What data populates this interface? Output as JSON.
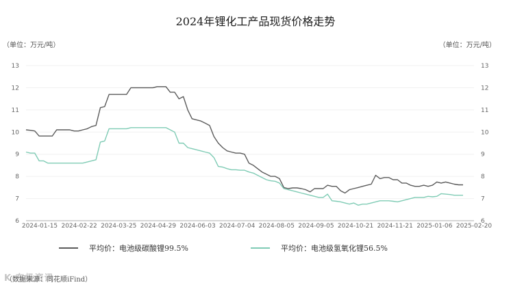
{
  "title": "2024年锂化工产品现货价格走势",
  "unit_left": "（单位：万元/吨）",
  "unit_right": "（单位：万元/吨）",
  "source": "（数据来源：同花顺iFind）",
  "watermark": "K 东极资讯",
  "legend": [
    {
      "label": "平均价：电池级碳酸锂99.5%",
      "color": "#5a5a5a"
    },
    {
      "label": "平均价：电池级氢氧化锂56.5%",
      "color": "#7ecbb4"
    }
  ],
  "chart_data": {
    "type": "line",
    "title": "2024年锂化工产品现货价格走势",
    "ylabel": "万元/吨",
    "ylim": [
      6,
      13
    ],
    "yticks": [
      6,
      7,
      8,
      9,
      10,
      11,
      12,
      13
    ],
    "grid": true,
    "legend_position": "bottom",
    "x_tick_labels": [
      "2024-01-15",
      "2024-02-22",
      "2024-03-25",
      "2024-04-29",
      "2024-06-03",
      "2024-07-04",
      "2024-08-05",
      "2024-09-05",
      "2024-10-21",
      "2024-11-21",
      "2025-01-06",
      "2025-02-20"
    ],
    "series": [
      {
        "name": "平均价：电池级碳酸锂99.5%",
        "color": "#5a5a5a",
        "values": [
          10.1,
          10.08,
          10.05,
          9.82,
          9.82,
          9.82,
          9.82,
          10.1,
          10.1,
          10.1,
          10.1,
          10.05,
          10.05,
          10.1,
          10.15,
          10.25,
          10.3,
          11.1,
          11.15,
          11.7,
          11.7,
          11.7,
          11.7,
          11.7,
          12.0,
          12.0,
          12.0,
          12.0,
          12.0,
          12.0,
          12.05,
          12.05,
          12.05,
          11.8,
          11.8,
          11.5,
          11.6,
          11.0,
          10.6,
          10.55,
          10.5,
          10.4,
          10.3,
          9.8,
          9.5,
          9.3,
          9.15,
          9.1,
          9.05,
          9.05,
          9.0,
          8.6,
          8.5,
          8.35,
          8.2,
          8.1,
          8.0,
          8.0,
          7.9,
          7.5,
          7.45,
          7.48,
          7.48,
          7.45,
          7.4,
          7.3,
          7.45,
          7.45,
          7.45,
          7.6,
          7.55,
          7.55,
          7.35,
          7.25,
          7.4,
          7.45,
          7.5,
          7.55,
          7.6,
          7.65,
          8.05,
          7.9,
          7.95,
          7.95,
          7.85,
          7.85,
          7.7,
          7.7,
          7.6,
          7.55,
          7.55,
          7.6,
          7.55,
          7.6,
          7.75,
          7.7,
          7.75,
          7.7,
          7.65,
          7.62,
          7.62
        ]
      },
      {
        "name": "平均价：电池级氢氧化锂56.5%",
        "color": "#7ecbb4",
        "values": [
          9.1,
          9.05,
          9.05,
          8.7,
          8.7,
          8.6,
          8.6,
          8.6,
          8.6,
          8.6,
          8.6,
          8.6,
          8.6,
          8.6,
          8.65,
          8.7,
          8.75,
          9.55,
          9.6,
          10.15,
          10.15,
          10.15,
          10.15,
          10.15,
          10.2,
          10.2,
          10.2,
          10.2,
          10.2,
          10.2,
          10.2,
          10.2,
          10.2,
          10.1,
          10.0,
          9.5,
          9.5,
          9.3,
          9.25,
          9.2,
          9.15,
          9.1,
          9.05,
          8.85,
          8.45,
          8.42,
          8.35,
          8.3,
          8.3,
          8.28,
          8.28,
          8.2,
          8.15,
          8.05,
          7.95,
          7.85,
          7.8,
          7.78,
          7.7,
          7.45,
          7.4,
          7.35,
          7.3,
          7.25,
          7.2,
          7.15,
          7.1,
          7.05,
          7.05,
          7.2,
          6.9,
          6.88,
          6.85,
          6.8,
          6.75,
          6.8,
          6.7,
          6.75,
          6.75,
          6.8,
          6.85,
          6.9,
          6.9,
          6.9,
          6.88,
          6.85,
          6.9,
          6.95,
          7.0,
          7.05,
          7.05,
          7.05,
          7.1,
          7.08,
          7.1,
          7.22,
          7.2,
          7.18,
          7.15,
          7.15,
          7.15
        ]
      }
    ]
  }
}
